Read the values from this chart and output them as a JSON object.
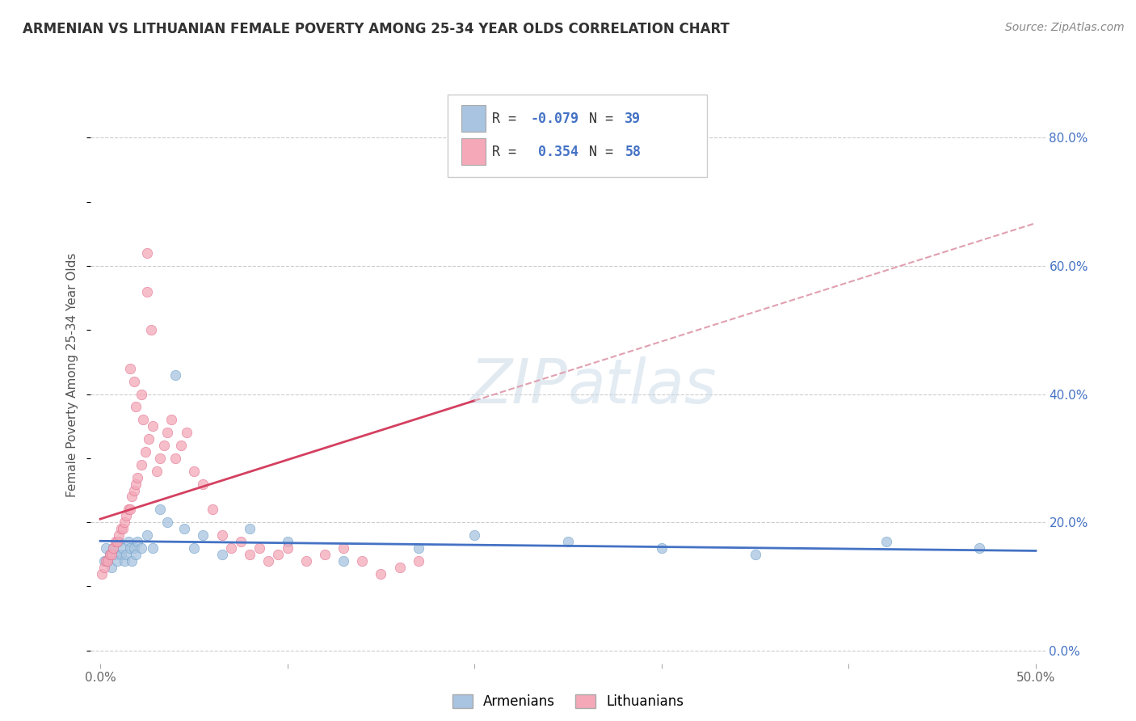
{
  "title": "ARMENIAN VS LITHUANIAN FEMALE POVERTY AMONG 25-34 YEAR OLDS CORRELATION CHART",
  "source": "Source: ZipAtlas.com",
  "ylabel": "Female Poverty Among 25-34 Year Olds",
  "xlim": [
    -0.005,
    0.505
  ],
  "ylim": [
    -0.02,
    0.88
  ],
  "xtick_vals": [
    0.0,
    0.1,
    0.2,
    0.3,
    0.4,
    0.5
  ],
  "xticklabels": [
    "0.0%",
    "",
    "",
    "",
    "",
    "50.0%"
  ],
  "ytick_vals": [
    0.0,
    0.2,
    0.4,
    0.6,
    0.8
  ],
  "yticklabels_right": [
    "0.0%",
    "20.0%",
    "40.0%",
    "60.0%",
    "80.0%"
  ],
  "armenian_color": "#a8c4e0",
  "armenian_edge_color": "#6aa0c8",
  "lithuanian_color": "#f4a8b8",
  "lithuanian_edge_color": "#e07090",
  "armenian_line_color": "#4472c4",
  "lithuanian_line_color": "#d44060",
  "dashed_line_color": "#e0a0b0",
  "background_color": "#ffffff",
  "grid_color": "#cccccc",
  "watermark_color": "#d0dce8",
  "legend_label_armenian": "Armenians",
  "legend_label_lithuanian": "Lithuanians",
  "armenian_R": -0.079,
  "armenian_N": 39,
  "lithuanian_R": 0.354,
  "lithuanian_N": 58,
  "armenian_scatter_x": [
    0.002,
    0.003,
    0.004,
    0.005,
    0.006,
    0.007,
    0.008,
    0.009,
    0.01,
    0.011,
    0.012,
    0.013,
    0.014,
    0.015,
    0.016,
    0.017,
    0.018,
    0.019,
    0.02,
    0.022,
    0.025,
    0.028,
    0.032,
    0.036,
    0.04,
    0.045,
    0.05,
    0.055,
    0.065,
    0.08,
    0.1,
    0.13,
    0.17,
    0.2,
    0.25,
    0.3,
    0.35,
    0.42,
    0.47
  ],
  "armenian_scatter_y": [
    0.14,
    0.16,
    0.14,
    0.15,
    0.13,
    0.16,
    0.15,
    0.14,
    0.17,
    0.15,
    0.16,
    0.14,
    0.15,
    0.17,
    0.16,
    0.14,
    0.16,
    0.15,
    0.17,
    0.16,
    0.18,
    0.16,
    0.22,
    0.2,
    0.43,
    0.19,
    0.16,
    0.18,
    0.15,
    0.19,
    0.17,
    0.14,
    0.16,
    0.18,
    0.17,
    0.16,
    0.15,
    0.17,
    0.16
  ],
  "lithuanian_scatter_x": [
    0.001,
    0.002,
    0.003,
    0.004,
    0.005,
    0.006,
    0.007,
    0.008,
    0.009,
    0.01,
    0.011,
    0.012,
    0.013,
    0.014,
    0.015,
    0.016,
    0.017,
    0.018,
    0.019,
    0.02,
    0.022,
    0.024,
    0.026,
    0.028,
    0.03,
    0.032,
    0.034,
    0.036,
    0.038,
    0.04,
    0.043,
    0.046,
    0.05,
    0.055,
    0.06,
    0.065,
    0.07,
    0.075,
    0.08,
    0.085,
    0.09,
    0.095,
    0.1,
    0.11,
    0.12,
    0.13,
    0.14,
    0.15,
    0.16,
    0.17,
    0.025,
    0.025,
    0.027,
    0.018,
    0.019,
    0.016,
    0.022,
    0.023
  ],
  "lithuanian_scatter_y": [
    0.12,
    0.13,
    0.14,
    0.14,
    0.15,
    0.15,
    0.16,
    0.17,
    0.17,
    0.18,
    0.19,
    0.19,
    0.2,
    0.21,
    0.22,
    0.22,
    0.24,
    0.25,
    0.26,
    0.27,
    0.29,
    0.31,
    0.33,
    0.35,
    0.28,
    0.3,
    0.32,
    0.34,
    0.36,
    0.3,
    0.32,
    0.34,
    0.28,
    0.26,
    0.22,
    0.18,
    0.16,
    0.17,
    0.15,
    0.16,
    0.14,
    0.15,
    0.16,
    0.14,
    0.15,
    0.16,
    0.14,
    0.12,
    0.13,
    0.14,
    0.62,
    0.56,
    0.5,
    0.42,
    0.38,
    0.44,
    0.4,
    0.36
  ]
}
